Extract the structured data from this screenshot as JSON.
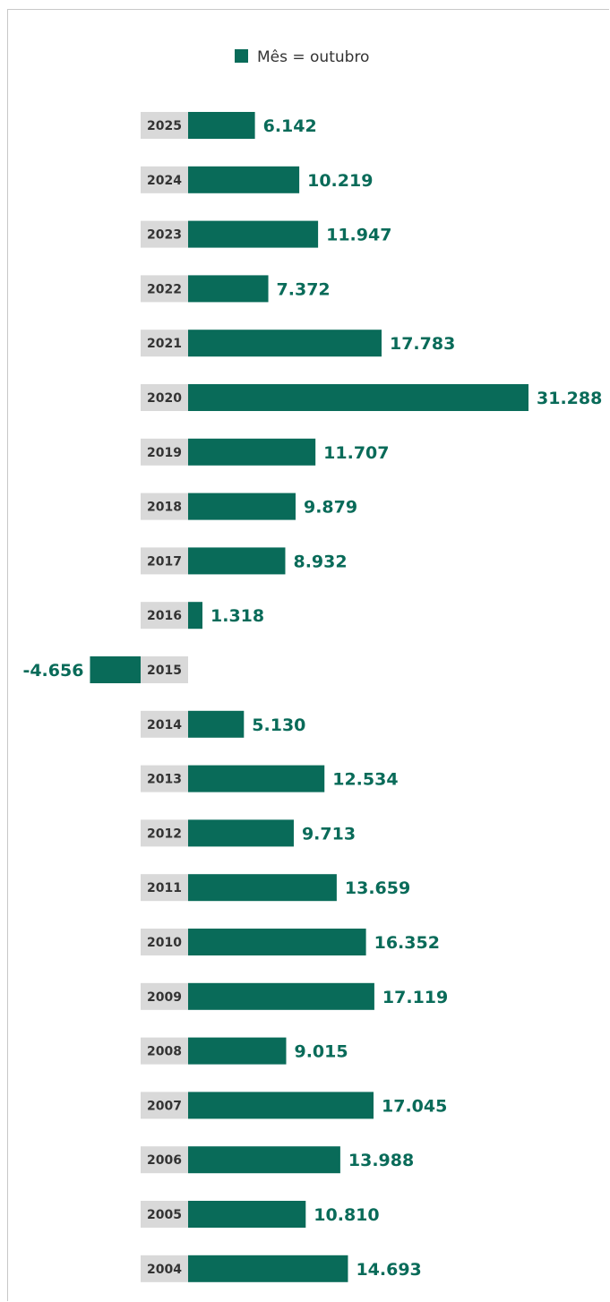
{
  "colors": {
    "bar": "#096b59",
    "label_text": "#096b59",
    "year_box": "#d9d9d9",
    "year_text": "#333333",
    "frame": "#c8c8c8"
  },
  "legend": {
    "label": "Mês = outubro"
  },
  "chart_data": {
    "type": "bar",
    "orientation": "horizontal",
    "categories": [
      "2025",
      "2024",
      "2023",
      "2022",
      "2021",
      "2020",
      "2019",
      "2018",
      "2017",
      "2016",
      "2015",
      "2014",
      "2013",
      "2012",
      "2011",
      "2010",
      "2009",
      "2008",
      "2007",
      "2006",
      "2005",
      "2004"
    ],
    "series": [
      {
        "name": "Mês = outubro",
        "values": [
          6142,
          10219,
          11947,
          7372,
          17783,
          31288,
          11707,
          9879,
          8932,
          1318,
          -4656,
          5130,
          12534,
          9713,
          13659,
          16352,
          17119,
          9015,
          17045,
          13988,
          10810,
          14693
        ],
        "labels": [
          "6.142",
          "10.219",
          "11.947",
          "7.372",
          "17.783",
          "31.288",
          "11.707",
          "9.879",
          "8.932",
          "1.318",
          "-4.656",
          "5.130",
          "12.534",
          "9.713",
          "13.659",
          "16.352",
          "17.119",
          "9.015",
          "17.045",
          "13.988",
          "10.810",
          "14.693"
        ]
      }
    ],
    "title": "",
    "xlabel": "",
    "ylabel": "",
    "grid": false,
    "legend_position": "top-center"
  }
}
